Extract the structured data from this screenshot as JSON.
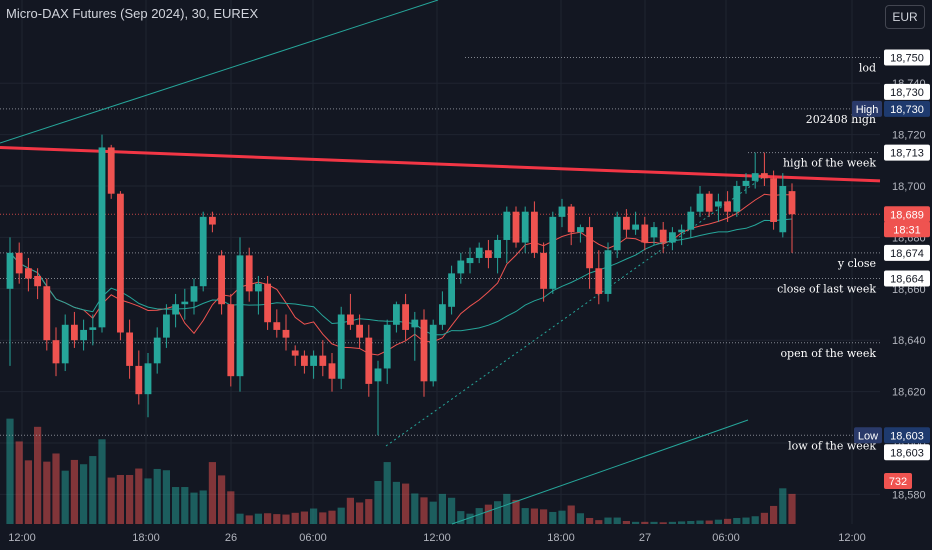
{
  "header": {
    "title": "Micro-DAX Futures (Sep 2024), 30, EUREX",
    "currency": "EUR"
  },
  "colors": {
    "background": "#131722",
    "up": "#26a69a",
    "down": "#ef5350",
    "grid": "#1f2430",
    "trendline": "#f23645",
    "ma_fast": "#ef5350",
    "ma_slow": "#26a69a",
    "level_line": "#b2b5be"
  },
  "chart_data": {
    "type": "candlestick",
    "title": "Micro-DAX Futures (Sep 2024), 30, EUREX",
    "timeframe": "30",
    "yaxis": {
      "range": [
        18572,
        18772
      ],
      "ticks": [
        18580,
        18600,
        18620,
        18640,
        18660,
        18680,
        18700,
        18720,
        18740
      ]
    },
    "xaxis": {
      "ticks": [
        "12:00",
        "18:00",
        "26",
        "06:00",
        "12:00",
        "18:00",
        "27",
        "06:00",
        "12:00"
      ]
    },
    "candles": [
      {
        "o": 18660,
        "h": 18680,
        "l": 18630,
        "c": 18674
      },
      {
        "o": 18674,
        "h": 18678,
        "l": 18662,
        "c": 18666
      },
      {
        "o": 18668,
        "h": 18672,
        "l": 18659,
        "c": 18664
      },
      {
        "o": 18665,
        "h": 18668,
        "l": 18656,
        "c": 18661
      },
      {
        "o": 18661,
        "h": 18664,
        "l": 18636,
        "c": 18640
      },
      {
        "o": 18640,
        "h": 18645,
        "l": 18626,
        "c": 18631
      },
      {
        "o": 18631,
        "h": 18650,
        "l": 18628,
        "c": 18646
      },
      {
        "o": 18646,
        "h": 18651,
        "l": 18637,
        "c": 18640
      },
      {
        "o": 18640,
        "h": 18648,
        "l": 18636,
        "c": 18644
      },
      {
        "o": 18644,
        "h": 18650,
        "l": 18638,
        "c": 18645
      },
      {
        "o": 18645,
        "h": 18720,
        "l": 18643,
        "c": 18715
      },
      {
        "o": 18715,
        "h": 18716,
        "l": 18695,
        "c": 18697
      },
      {
        "o": 18697,
        "h": 18698,
        "l": 18640,
        "c": 18643
      },
      {
        "o": 18643,
        "h": 18648,
        "l": 18625,
        "c": 18630
      },
      {
        "o": 18630,
        "h": 18636,
        "l": 18615,
        "c": 18619
      },
      {
        "o": 18619,
        "h": 18635,
        "l": 18610,
        "c": 18631
      },
      {
        "o": 18631,
        "h": 18645,
        "l": 18627,
        "c": 18641
      },
      {
        "o": 18641,
        "h": 18654,
        "l": 18637,
        "c": 18650
      },
      {
        "o": 18650,
        "h": 18658,
        "l": 18645,
        "c": 18654
      },
      {
        "o": 18654,
        "h": 18660,
        "l": 18648,
        "c": 18655
      },
      {
        "o": 18655,
        "h": 18664,
        "l": 18650,
        "c": 18661
      },
      {
        "o": 18661,
        "h": 18690,
        "l": 18659,
        "c": 18688
      },
      {
        "o": 18688,
        "h": 18690,
        "l": 18682,
        "c": 18685
      },
      {
        "o": 18673,
        "h": 18675,
        "l": 18650,
        "c": 18654
      },
      {
        "o": 18654,
        "h": 18658,
        "l": 18622,
        "c": 18626
      },
      {
        "o": 18626,
        "h": 18680,
        "l": 18620,
        "c": 18673
      },
      {
        "o": 18673,
        "h": 18676,
        "l": 18655,
        "c": 18659
      },
      {
        "o": 18659,
        "h": 18665,
        "l": 18650,
        "c": 18662
      },
      {
        "o": 18662,
        "h": 18665,
        "l": 18644,
        "c": 18647
      },
      {
        "o": 18647,
        "h": 18652,
        "l": 18641,
        "c": 18644
      },
      {
        "o": 18644,
        "h": 18650,
        "l": 18636,
        "c": 18641
      },
      {
        "o": 18636,
        "h": 18638,
        "l": 18630,
        "c": 18634
      },
      {
        "o": 18634,
        "h": 18636,
        "l": 18627,
        "c": 18630
      },
      {
        "o": 18630,
        "h": 18636,
        "l": 18625,
        "c": 18634
      },
      {
        "o": 18634,
        "h": 18640,
        "l": 18626,
        "c": 18630
      },
      {
        "o": 18631,
        "h": 18635,
        "l": 18620,
        "c": 18625
      },
      {
        "o": 18625,
        "h": 18653,
        "l": 18621,
        "c": 18650
      },
      {
        "o": 18650,
        "h": 18658,
        "l": 18644,
        "c": 18646
      },
      {
        "o": 18646,
        "h": 18650,
        "l": 18637,
        "c": 18641
      },
      {
        "o": 18641,
        "h": 18646,
        "l": 18618,
        "c": 18623
      },
      {
        "o": 18624,
        "h": 18632,
        "l": 18603,
        "c": 18629
      },
      {
        "o": 18629,
        "h": 18648,
        "l": 18623,
        "c": 18646
      },
      {
        "o": 18646,
        "h": 18655,
        "l": 18643,
        "c": 18654
      },
      {
        "o": 18654,
        "h": 18658,
        "l": 18640,
        "c": 18644
      },
      {
        "o": 18645,
        "h": 18651,
        "l": 18632,
        "c": 18648
      },
      {
        "o": 18648,
        "h": 18652,
        "l": 18618,
        "c": 18624
      },
      {
        "o": 18624,
        "h": 18648,
        "l": 18622,
        "c": 18646
      },
      {
        "o": 18646,
        "h": 18659,
        "l": 18644,
        "c": 18654
      },
      {
        "o": 18653,
        "h": 18669,
        "l": 18650,
        "c": 18666
      },
      {
        "o": 18666,
        "h": 18674,
        "l": 18662,
        "c": 18671
      },
      {
        "o": 18670,
        "h": 18676,
        "l": 18666,
        "c": 18672
      },
      {
        "o": 18672,
        "h": 18678,
        "l": 18670,
        "c": 18676
      },
      {
        "o": 18675,
        "h": 18679,
        "l": 18668,
        "c": 18672
      },
      {
        "o": 18672,
        "h": 18681,
        "l": 18666,
        "c": 18679
      },
      {
        "o": 18679,
        "h": 18692,
        "l": 18670,
        "c": 18690
      },
      {
        "o": 18690,
        "h": 18692,
        "l": 18676,
        "c": 18678
      },
      {
        "o": 18678,
        "h": 18692,
        "l": 18674,
        "c": 18690
      },
      {
        "o": 18690,
        "h": 18694,
        "l": 18672,
        "c": 18674
      },
      {
        "o": 18674,
        "h": 18678,
        "l": 18655,
        "c": 18660
      },
      {
        "o": 18660,
        "h": 18690,
        "l": 18658,
        "c": 18688
      },
      {
        "o": 18688,
        "h": 18695,
        "l": 18684,
        "c": 18692
      },
      {
        "o": 18692,
        "h": 18693,
        "l": 18677,
        "c": 18682
      },
      {
        "o": 18682,
        "h": 18685,
        "l": 18678,
        "c": 18684
      },
      {
        "o": 18684,
        "h": 18688,
        "l": 18660,
        "c": 18668
      },
      {
        "o": 18668,
        "h": 18675,
        "l": 18654,
        "c": 18658
      },
      {
        "o": 18658,
        "h": 18678,
        "l": 18655,
        "c": 18675
      },
      {
        "o": 18675,
        "h": 18690,
        "l": 18672,
        "c": 18688
      },
      {
        "o": 18688,
        "h": 18691,
        "l": 18680,
        "c": 18683
      },
      {
        "o": 18683,
        "h": 18690,
        "l": 18681,
        "c": 18685
      },
      {
        "o": 18685,
        "h": 18688,
        "l": 18675,
        "c": 18678
      },
      {
        "o": 18680,
        "h": 18686,
        "l": 18677,
        "c": 18684
      },
      {
        "o": 18683,
        "h": 18686,
        "l": 18674,
        "c": 18678
      },
      {
        "o": 18678,
        "h": 18684,
        "l": 18675,
        "c": 18682
      },
      {
        "o": 18682,
        "h": 18685,
        "l": 18677,
        "c": 18683
      },
      {
        "o": 18683,
        "h": 18692,
        "l": 18680,
        "c": 18690
      },
      {
        "o": 18690,
        "h": 18700,
        "l": 18688,
        "c": 18697
      },
      {
        "o": 18697,
        "h": 18698,
        "l": 18688,
        "c": 18690
      },
      {
        "o": 18692,
        "h": 18697,
        "l": 18686,
        "c": 18694
      },
      {
        "o": 18694,
        "h": 18698,
        "l": 18686,
        "c": 18690
      },
      {
        "o": 18690,
        "h": 18702,
        "l": 18688,
        "c": 18700
      },
      {
        "o": 18700,
        "h": 18705,
        "l": 18697,
        "c": 18702
      },
      {
        "o": 18702,
        "h": 18713,
        "l": 18699,
        "c": 18705
      },
      {
        "o": 18705,
        "h": 18713,
        "l": 18700,
        "c": 18703
      },
      {
        "o": 18703,
        "h": 18706,
        "l": 18683,
        "c": 18686
      },
      {
        "o": 18682,
        "h": 18705,
        "l": 18680,
        "c": 18700
      },
      {
        "o": 18698,
        "h": 18701,
        "l": 18674,
        "c": 18689
      }
    ],
    "volume": [
      245,
      192,
      148,
      226,
      145,
      164,
      124,
      149,
      139,
      158,
      197,
      108,
      114,
      114,
      129,
      106,
      128,
      125,
      86,
      86,
      73,
      78,
      144,
      113,
      76,
      24,
      20,
      24,
      25,
      23,
      22,
      26,
      29,
      36,
      27,
      31,
      38,
      61,
      50,
      58,
      100,
      144,
      98,
      94,
      71,
      62,
      52,
      70,
      61,
      30,
      24,
      37,
      45,
      53,
      70,
      56,
      37,
      36,
      34,
      28,
      31,
      43,
      25,
      14,
      9,
      15,
      15,
      7,
      5,
      5,
      5,
      4,
      5,
      6,
      7,
      8,
      8,
      10,
      12,
      14,
      15,
      18,
      26,
      42,
      83,
      70
    ],
    "ma_fast_label": "",
    "ma_slow_label": "",
    "levels": [
      {
        "label": "lod",
        "price": 18750,
        "value_text": "18,750"
      },
      {
        "label": "202408 high",
        "price": 18730,
        "value_text": "18,730"
      },
      {
        "label": "high of the week",
        "price": 18713,
        "value_text": "18,713"
      },
      {
        "label": "y close",
        "price": 18674,
        "value_text": "18,674"
      },
      {
        "label": "close of last week",
        "price": 18664,
        "value_text": "18,664"
      },
      {
        "label": "open of the week",
        "price": 18639,
        "value_text": ""
      },
      {
        "label": "low of the week",
        "price": 18603,
        "value_text": "18,603"
      }
    ],
    "badges": {
      "high_label": "High",
      "high_value": "18,730",
      "high_extra": "18,730",
      "low_label": "Low",
      "low_value": "18,603",
      "low_extra": "18,603",
      "last_price": "18,689",
      "countdown": "18:31",
      "volume_last": "732"
    },
    "trendline_red": {
      "points": [
        [
          "start",
          18715
        ],
        [
          "end",
          18702
        ]
      ]
    }
  }
}
